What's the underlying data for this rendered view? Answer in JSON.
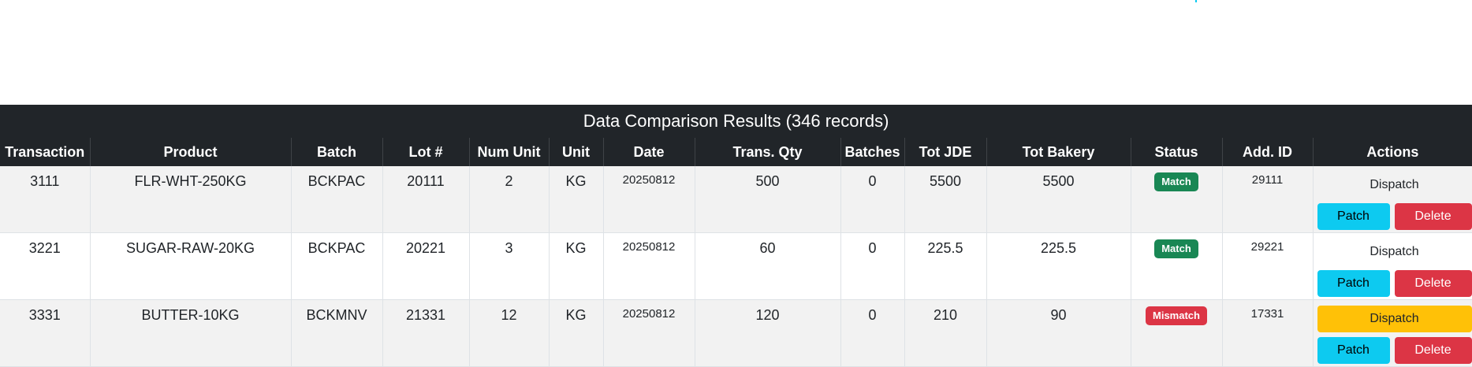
{
  "table": {
    "title": "Data Comparison Results (346 records)",
    "columns": [
      "Transaction",
      "Product",
      "Batch",
      "Lot #",
      "Num Unit",
      "Unit",
      "Date",
      "Trans. Qty",
      "Batches",
      "Tot JDE",
      "Tot Bakery",
      "Status",
      "Add. ID",
      "Actions"
    ],
    "rows": [
      {
        "transaction": "3111",
        "product": "FLR-WHT-250KG",
        "batch": "BCKPAC",
        "lot": "20111",
        "num_unit": "2",
        "unit": "KG",
        "date": "20250812",
        "trans_qty": "500",
        "batches": "0",
        "tot_jde": "5500",
        "tot_bakery": "5500",
        "status": "Match",
        "add_id": "29111",
        "dispatch": "Dispatch",
        "patch": "Patch",
        "delete": "Delete"
      },
      {
        "transaction": "3221",
        "product": "SUGAR-RAW-20KG",
        "batch": "BCKPAC",
        "lot": "20221",
        "num_unit": "3",
        "unit": "KG",
        "date": "20250812",
        "trans_qty": "60",
        "batches": "0",
        "tot_jde": "225.5",
        "tot_bakery": "225.5",
        "status": "Match",
        "add_id": "29221",
        "dispatch": "Dispatch",
        "patch": "Patch",
        "delete": "Delete"
      },
      {
        "transaction": "3331",
        "product": "BUTTER-10KG",
        "batch": "BCKMNV",
        "lot": "21331",
        "num_unit": "12",
        "unit": "KG",
        "date": "20250812",
        "trans_qty": "120",
        "batches": "0",
        "tot_jde": "210",
        "tot_bakery": "90",
        "status": "Mismatch",
        "add_id": "17331",
        "dispatch": "Dispatch",
        "patch": "Patch",
        "delete": "Delete"
      }
    ]
  },
  "colors": {
    "header_bg": "#212529",
    "match": "#198754",
    "mismatch": "#dc3545",
    "patch": "#0dcaf0",
    "delete": "#dc3545",
    "dispatch_active": "#ffc107"
  }
}
